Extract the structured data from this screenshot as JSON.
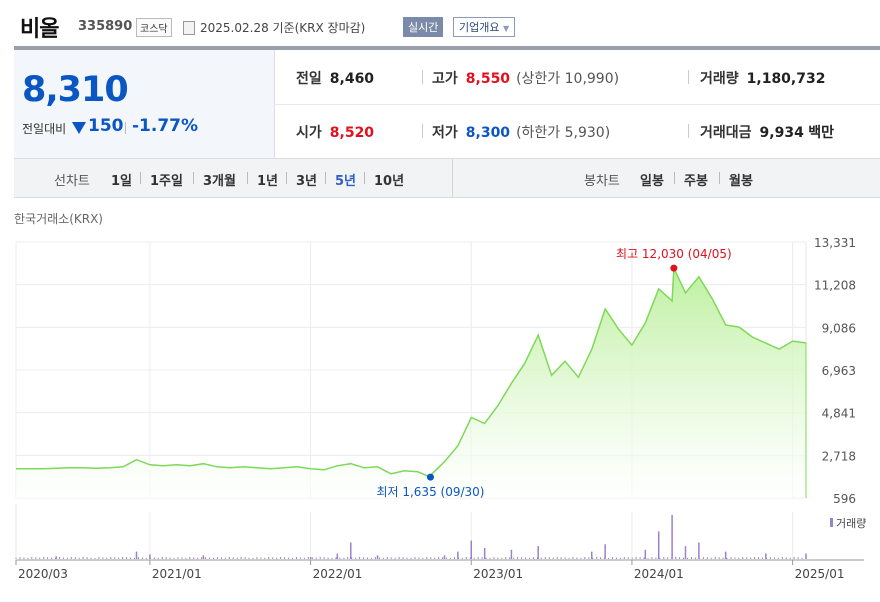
{
  "header": {
    "name": "비올",
    "code": "335890",
    "market": "코스닥",
    "date_text": "2025.02.28  기준(KRX 장마감)",
    "realtime_label": "실시간",
    "overview_label": "기업개요"
  },
  "current": {
    "price": "8,310",
    "change_label": "전일대비",
    "change_value": "150",
    "change_rate": "-1.77%"
  },
  "stats": {
    "prev_close": {
      "label": "전일",
      "value": "8,460"
    },
    "open": {
      "label": "시가",
      "value": "8,520"
    },
    "high": {
      "label": "고가",
      "value": "8,550",
      "limit_label": "상한가",
      "limit_value": "10,990"
    },
    "low": {
      "label": "저가",
      "value": "8,300",
      "limit_label": "하한가",
      "limit_value": "5,930"
    },
    "volume": {
      "label": "거래량",
      "value": "1,180,732"
    },
    "amount": {
      "label": "거래대금",
      "value": "9,934",
      "unit": "백만"
    }
  },
  "tabs": {
    "line_label": "선차트",
    "periods": [
      "1일",
      "1주일",
      "3개월",
      "1년",
      "3년",
      "5년",
      "10년"
    ],
    "active_period": "5년",
    "candle_label": "봉차트",
    "candles": [
      "일봉",
      "주봉",
      "월봉"
    ]
  },
  "source_label": "한국거래소(KRX)",
  "colors": {
    "up": "#e0101e",
    "down": "#0a56c2",
    "line": "#7ed957",
    "fill_top": "#bdf09f",
    "volume": "#9a82c9"
  },
  "chart_data": {
    "type": "area",
    "title": "",
    "xlabel": "",
    "ylabel": "",
    "ylim": [
      596,
      13331
    ],
    "y_ticks": [
      "13,331",
      "11,208",
      "9,086",
      "6,963",
      "4,841",
      "2,718",
      "596"
    ],
    "y_tick_values": [
      13331,
      11208,
      9086,
      6963,
      4841,
      2718,
      596
    ],
    "x_ticks": [
      {
        "label": "2020/03",
        "x": "2020-03"
      },
      {
        "label": "2021/01",
        "x": "2021-01"
      },
      {
        "label": "2022/01",
        "x": "2022-01"
      },
      {
        "label": "2023/01",
        "x": "2023-01"
      },
      {
        "label": "2024/01",
        "x": "2024-01"
      },
      {
        "label": "2025/01",
        "x": "2025-01"
      }
    ],
    "x_range": [
      "2020-03",
      "2025-02"
    ],
    "grid": true,
    "series": [
      {
        "values": [
          [
            "2020-03",
            2050
          ],
          [
            "2020-04",
            2050
          ],
          [
            "2020-05",
            2050
          ],
          [
            "2020-06",
            2080
          ],
          [
            "2020-07",
            2100
          ],
          [
            "2020-08",
            2100
          ],
          [
            "2020-09",
            2080
          ],
          [
            "2020-10",
            2100
          ],
          [
            "2020-11",
            2150
          ],
          [
            "2020-12",
            2500
          ],
          [
            "2021-01",
            2250
          ],
          [
            "2021-02",
            2200
          ],
          [
            "2021-03",
            2250
          ],
          [
            "2021-04",
            2200
          ],
          [
            "2021-05",
            2300
          ],
          [
            "2021-06",
            2150
          ],
          [
            "2021-07",
            2100
          ],
          [
            "2021-08",
            2150
          ],
          [
            "2021-09",
            2100
          ],
          [
            "2021-10",
            2050
          ],
          [
            "2021-11",
            2100
          ],
          [
            "2021-12",
            2150
          ],
          [
            "2022-01",
            2050
          ],
          [
            "2022-02",
            2000
          ],
          [
            "2022-03",
            2200
          ],
          [
            "2022-04",
            2300
          ],
          [
            "2022-05",
            2100
          ],
          [
            "2022-06",
            2150
          ],
          [
            "2022-07",
            1800
          ],
          [
            "2022-08",
            1950
          ],
          [
            "2022-09",
            1900
          ],
          [
            "2022-09-30",
            1635
          ],
          [
            "2022-10",
            1750
          ],
          [
            "2022-11",
            2400
          ],
          [
            "2022-12",
            3200
          ],
          [
            "2023-01",
            4600
          ],
          [
            "2023-02",
            4300
          ],
          [
            "2023-03",
            5200
          ],
          [
            "2023-04",
            6300
          ],
          [
            "2023-05",
            7300
          ],
          [
            "2023-06",
            8700
          ],
          [
            "2023-07",
            6700
          ],
          [
            "2023-08",
            7400
          ],
          [
            "2023-09",
            6600
          ],
          [
            "2023-10",
            8000
          ],
          [
            "2023-11",
            10000
          ],
          [
            "2023-12",
            9000
          ],
          [
            "2024-01",
            8200
          ],
          [
            "2024-02",
            9300
          ],
          [
            "2024-03",
            11000
          ],
          [
            "2024-04",
            10400
          ],
          [
            "2024-04-05",
            12030
          ],
          [
            "2024-05",
            10800
          ],
          [
            "2024-06",
            11600
          ],
          [
            "2024-07",
            10500
          ],
          [
            "2024-08",
            9200
          ],
          [
            "2024-09",
            9100
          ],
          [
            "2024-10",
            8600
          ],
          [
            "2024-11",
            8300
          ],
          [
            "2024-12",
            8000
          ],
          [
            "2025-01",
            8400
          ],
          [
            "2025-02",
            8310
          ]
        ]
      }
    ],
    "annotations": [
      {
        "label": "최고 12,030 (04/05)",
        "x": "2024-04-05",
        "y": 12030
      },
      {
        "label": "최저 1,635 (09/30)",
        "x": "2022-09-30",
        "y": 1635
      }
    ],
    "volume_label": "거래량",
    "volume": {
      "values": [
        [
          "2020-06",
          3
        ],
        [
          "2020-12",
          8
        ],
        [
          "2021-01",
          5
        ],
        [
          "2021-05",
          4
        ],
        [
          "2022-01",
          2
        ],
        [
          "2022-03",
          6
        ],
        [
          "2022-04",
          18
        ],
        [
          "2022-06",
          4
        ],
        [
          "2022-11",
          4
        ],
        [
          "2022-12",
          8
        ],
        [
          "2023-01",
          20
        ],
        [
          "2023-02",
          12
        ],
        [
          "2023-04",
          10
        ],
        [
          "2023-06",
          14
        ],
        [
          "2023-10",
          8
        ],
        [
          "2023-11",
          16
        ],
        [
          "2024-02",
          10
        ],
        [
          "2024-03",
          30
        ],
        [
          "2024-04",
          48
        ],
        [
          "2024-05",
          14
        ],
        [
          "2024-06",
          18
        ],
        [
          "2024-08",
          8
        ],
        [
          "2024-11",
          6
        ],
        [
          "2025-02",
          6
        ]
      ],
      "baseline": 2
    }
  }
}
